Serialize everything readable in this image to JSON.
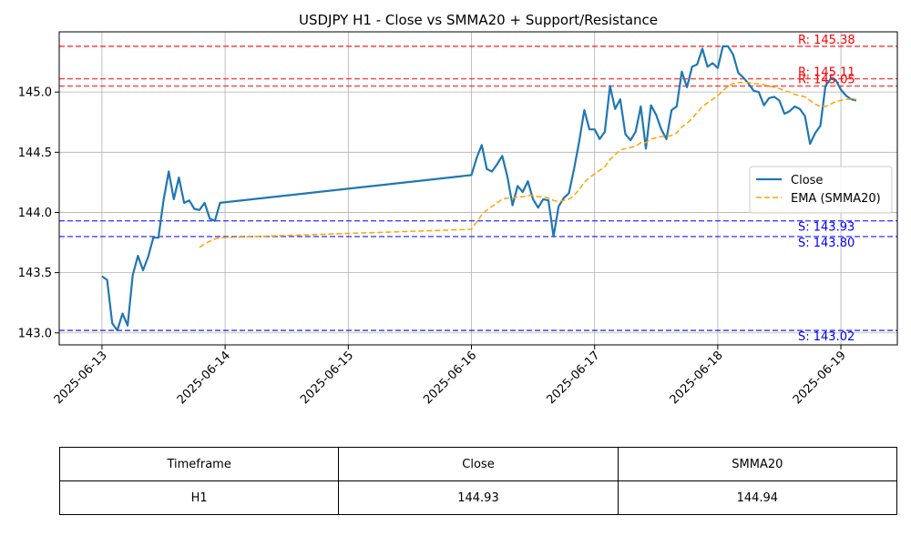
{
  "chart_data": {
    "type": "line",
    "title": "USDJPY H1 - Close vs SMMA20 + Support/Resistance",
    "xlabel": "",
    "ylabel": "",
    "x_ticks": [
      "2025-06-13",
      "2025-06-14",
      "2025-06-15",
      "2025-06-16",
      "2025-06-17",
      "2025-06-18",
      "2025-06-19"
    ],
    "y_ticks": [
      143.0,
      143.5,
      144.0,
      144.5,
      145.0
    ],
    "xlim": [
      "2025-06-12 15:40",
      "2025-06-19 11:00"
    ],
    "ylim": [
      142.9,
      145.5
    ],
    "grid": true,
    "legend_position": "center-right",
    "series": [
      {
        "name": "Close",
        "color": "#1f77b4",
        "style": "solid",
        "points": [
          [
            "2025-06-13 00:00",
            143.47
          ],
          [
            "2025-06-13 01:00",
            143.44
          ],
          [
            "2025-06-13 02:00",
            143.08
          ],
          [
            "2025-06-13 03:00",
            143.02
          ],
          [
            "2025-06-13 04:00",
            143.16
          ],
          [
            "2025-06-13 05:00",
            143.06
          ],
          [
            "2025-06-13 06:00",
            143.48
          ],
          [
            "2025-06-13 07:00",
            143.64
          ],
          [
            "2025-06-13 08:00",
            143.52
          ],
          [
            "2025-06-13 09:00",
            143.63
          ],
          [
            "2025-06-13 10:00",
            143.79
          ],
          [
            "2025-06-13 11:00",
            143.79
          ],
          [
            "2025-06-13 12:00",
            144.1
          ],
          [
            "2025-06-13 13:00",
            144.34
          ],
          [
            "2025-06-13 14:00",
            144.11
          ],
          [
            "2025-06-13 15:00",
            144.29
          ],
          [
            "2025-06-13 16:00",
            144.08
          ],
          [
            "2025-06-13 17:00",
            144.1
          ],
          [
            "2025-06-13 18:00",
            144.03
          ],
          [
            "2025-06-13 19:00",
            144.02
          ],
          [
            "2025-06-13 20:00",
            144.08
          ],
          [
            "2025-06-13 21:00",
            143.95
          ],
          [
            "2025-06-13 22:00",
            143.93
          ],
          [
            "2025-06-13 23:00",
            144.08
          ],
          [
            "2025-06-16 00:00",
            144.31
          ],
          [
            "2025-06-16 01:00",
            144.45
          ],
          [
            "2025-06-16 02:00",
            144.56
          ],
          [
            "2025-06-16 03:00",
            144.36
          ],
          [
            "2025-06-16 04:00",
            144.34
          ],
          [
            "2025-06-16 05:00",
            144.4
          ],
          [
            "2025-06-16 06:00",
            144.47
          ],
          [
            "2025-06-16 07:00",
            144.3
          ],
          [
            "2025-06-16 08:00",
            144.06
          ],
          [
            "2025-06-16 09:00",
            144.22
          ],
          [
            "2025-06-16 10:00",
            144.17
          ],
          [
            "2025-06-16 11:00",
            144.26
          ],
          [
            "2025-06-16 12:00",
            144.11
          ],
          [
            "2025-06-16 13:00",
            144.04
          ],
          [
            "2025-06-16 14:00",
            144.11
          ],
          [
            "2025-06-16 15:00",
            144.1
          ],
          [
            "2025-06-16 16:00",
            143.8
          ],
          [
            "2025-06-16 17:00",
            144.05
          ],
          [
            "2025-06-16 18:00",
            144.12
          ],
          [
            "2025-06-16 19:00",
            144.16
          ],
          [
            "2025-06-16 20:00",
            144.36
          ],
          [
            "2025-06-16 21:00",
            144.59
          ],
          [
            "2025-06-16 22:00",
            144.85
          ],
          [
            "2025-06-16 23:00",
            144.69
          ],
          [
            "2025-06-17 00:00",
            144.69
          ],
          [
            "2025-06-17 01:00",
            144.61
          ],
          [
            "2025-06-17 02:00",
            144.67
          ],
          [
            "2025-06-17 03:00",
            145.05
          ],
          [
            "2025-06-17 04:00",
            144.86
          ],
          [
            "2025-06-17 05:00",
            144.94
          ],
          [
            "2025-06-17 06:00",
            144.65
          ],
          [
            "2025-06-17 07:00",
            144.6
          ],
          [
            "2025-06-17 08:00",
            144.67
          ],
          [
            "2025-06-17 09:00",
            144.88
          ],
          [
            "2025-06-17 10:00",
            144.53
          ],
          [
            "2025-06-17 11:00",
            144.89
          ],
          [
            "2025-06-17 12:00",
            144.81
          ],
          [
            "2025-06-17 13:00",
            144.69
          ],
          [
            "2025-06-17 14:00",
            144.61
          ],
          [
            "2025-06-17 15:00",
            144.85
          ],
          [
            "2025-06-17 16:00",
            144.88
          ],
          [
            "2025-06-17 17:00",
            145.17
          ],
          [
            "2025-06-17 18:00",
            145.04
          ],
          [
            "2025-06-17 19:00",
            145.21
          ],
          [
            "2025-06-17 20:00",
            145.23
          ],
          [
            "2025-06-17 21:00",
            145.36
          ],
          [
            "2025-06-17 22:00",
            145.21
          ],
          [
            "2025-06-17 23:00",
            145.24
          ],
          [
            "2025-06-18 00:00",
            145.2
          ],
          [
            "2025-06-18 01:00",
            145.38
          ],
          [
            "2025-06-18 02:00",
            145.38
          ],
          [
            "2025-06-18 03:00",
            145.31
          ],
          [
            "2025-06-18 04:00",
            145.16
          ],
          [
            "2025-06-18 05:00",
            145.12
          ],
          [
            "2025-06-18 06:00",
            145.07
          ],
          [
            "2025-06-18 07:00",
            145.01
          ],
          [
            "2025-06-18 08:00",
            145.0
          ],
          [
            "2025-06-18 09:00",
            144.89
          ],
          [
            "2025-06-18 10:00",
            144.95
          ],
          [
            "2025-06-18 11:00",
            144.96
          ],
          [
            "2025-06-18 12:00",
            144.93
          ],
          [
            "2025-06-18 13:00",
            144.82
          ],
          [
            "2025-06-18 14:00",
            144.84
          ],
          [
            "2025-06-18 15:00",
            144.88
          ],
          [
            "2025-06-18 16:00",
            144.86
          ],
          [
            "2025-06-18 17:00",
            144.8
          ],
          [
            "2025-06-18 18:00",
            144.57
          ],
          [
            "2025-06-18 19:00",
            144.66
          ],
          [
            "2025-06-18 20:00",
            144.72
          ],
          [
            "2025-06-18 21:00",
            145.05
          ],
          [
            "2025-06-18 22:00",
            145.11
          ],
          [
            "2025-06-18 23:00",
            145.1
          ],
          [
            "2025-06-19 00:00",
            145.02
          ],
          [
            "2025-06-19 01:00",
            144.97
          ],
          [
            "2025-06-19 02:00",
            144.94
          ],
          [
            "2025-06-19 03:00",
            144.93
          ]
        ]
      },
      {
        "name": "EMA (SMMA20)",
        "color": "#ffa500",
        "style": "dashed",
        "points": [
          [
            "2025-06-13 19:00",
            143.71
          ],
          [
            "2025-06-13 20:00",
            143.74
          ],
          [
            "2025-06-13 21:00",
            143.76
          ],
          [
            "2025-06-13 22:00",
            143.78
          ],
          [
            "2025-06-13 23:00",
            143.79
          ],
          [
            "2025-06-16 00:00",
            143.86
          ],
          [
            "2025-06-16 01:00",
            143.92
          ],
          [
            "2025-06-16 02:00",
            143.98
          ],
          [
            "2025-06-16 03:00",
            144.02
          ],
          [
            "2025-06-16 04:00",
            144.05
          ],
          [
            "2025-06-16 05:00",
            144.08
          ],
          [
            "2025-06-16 06:00",
            144.11
          ],
          [
            "2025-06-16 07:00",
            144.12
          ],
          [
            "2025-06-16 08:00",
            144.12
          ],
          [
            "2025-06-16 09:00",
            144.13
          ],
          [
            "2025-06-16 10:00",
            144.13
          ],
          [
            "2025-06-16 11:00",
            144.14
          ],
          [
            "2025-06-16 12:00",
            144.14
          ],
          [
            "2025-06-16 13:00",
            144.13
          ],
          [
            "2025-06-16 14:00",
            144.13
          ],
          [
            "2025-06-16 15:00",
            144.12
          ],
          [
            "2025-06-16 16:00",
            144.1
          ],
          [
            "2025-06-16 17:00",
            144.09
          ],
          [
            "2025-06-16 18:00",
            144.1
          ],
          [
            "2025-06-16 19:00",
            144.11
          ],
          [
            "2025-06-16 20:00",
            144.14
          ],
          [
            "2025-06-16 21:00",
            144.19
          ],
          [
            "2025-06-16 22:00",
            144.25
          ],
          [
            "2025-06-16 23:00",
            144.29
          ],
          [
            "2025-06-17 00:00",
            144.32
          ],
          [
            "2025-06-17 01:00",
            144.35
          ],
          [
            "2025-06-17 02:00",
            144.38
          ],
          [
            "2025-06-17 03:00",
            144.44
          ],
          [
            "2025-06-17 04:00",
            144.48
          ],
          [
            "2025-06-17 05:00",
            144.52
          ],
          [
            "2025-06-17 06:00",
            144.53
          ],
          [
            "2025-06-17 07:00",
            144.54
          ],
          [
            "2025-06-17 08:00",
            144.55
          ],
          [
            "2025-06-17 09:00",
            144.58
          ],
          [
            "2025-06-17 10:00",
            144.58
          ],
          [
            "2025-06-17 11:00",
            144.61
          ],
          [
            "2025-06-17 12:00",
            144.62
          ],
          [
            "2025-06-17 13:00",
            144.63
          ],
          [
            "2025-06-17 14:00",
            144.63
          ],
          [
            "2025-06-17 15:00",
            144.64
          ],
          [
            "2025-06-17 16:00",
            144.66
          ],
          [
            "2025-06-17 17:00",
            144.71
          ],
          [
            "2025-06-17 18:00",
            144.74
          ],
          [
            "2025-06-17 19:00",
            144.78
          ],
          [
            "2025-06-17 20:00",
            144.83
          ],
          [
            "2025-06-17 21:00",
            144.88
          ],
          [
            "2025-06-17 22:00",
            144.91
          ],
          [
            "2025-06-17 23:00",
            144.94
          ],
          [
            "2025-06-18 00:00",
            144.97
          ],
          [
            "2025-06-18 01:00",
            145.01
          ],
          [
            "2025-06-18 02:00",
            145.05
          ],
          [
            "2025-06-18 03:00",
            145.07
          ],
          [
            "2025-06-18 04:00",
            145.08
          ],
          [
            "2025-06-18 05:00",
            145.08
          ],
          [
            "2025-06-18 06:00",
            145.08
          ],
          [
            "2025-06-18 07:00",
            145.07
          ],
          [
            "2025-06-18 08:00",
            145.07
          ],
          [
            "2025-06-18 09:00",
            145.06
          ],
          [
            "2025-06-18 10:00",
            145.05
          ],
          [
            "2025-06-18 11:00",
            145.04
          ],
          [
            "2025-06-18 12:00",
            145.03
          ],
          [
            "2025-06-18 13:00",
            145.01
          ],
          [
            "2025-06-18 14:00",
            145.0
          ],
          [
            "2025-06-18 15:00",
            144.98
          ],
          [
            "2025-06-18 16:00",
            144.97
          ],
          [
            "2025-06-18 17:00",
            144.96
          ],
          [
            "2025-06-18 18:00",
            144.93
          ],
          [
            "2025-06-18 19:00",
            144.9
          ],
          [
            "2025-06-18 20:00",
            144.88
          ],
          [
            "2025-06-18 21:00",
            144.88
          ],
          [
            "2025-06-18 22:00",
            144.9
          ],
          [
            "2025-06-18 23:00",
            144.92
          ],
          [
            "2025-06-19 00:00",
            144.93
          ],
          [
            "2025-06-19 01:00",
            144.94
          ],
          [
            "2025-06-19 02:00",
            144.94
          ],
          [
            "2025-06-19 03:00",
            144.94
          ]
        ]
      }
    ],
    "levels": [
      {
        "kind": "resistance",
        "value": 145.38,
        "label": "R: 145.38",
        "color": "#ff0000"
      },
      {
        "kind": "resistance",
        "value": 145.11,
        "label": "R: 145.11",
        "color": "#ff0000"
      },
      {
        "kind": "resistance",
        "value": 145.05,
        "label": "R: 145.05",
        "color": "#ff0000"
      },
      {
        "kind": "support",
        "value": 143.93,
        "label": "S: 143.93",
        "color": "#0000ff"
      },
      {
        "kind": "support",
        "value": 143.8,
        "label": "S: 143.80",
        "color": "#0000ff"
      },
      {
        "kind": "support",
        "value": 143.02,
        "label": "S: 143.02",
        "color": "#0000ff"
      }
    ]
  },
  "table": {
    "headers": [
      "Timeframe",
      "Close",
      "SMMA20"
    ],
    "row": [
      "H1",
      "144.93",
      "144.94"
    ]
  }
}
